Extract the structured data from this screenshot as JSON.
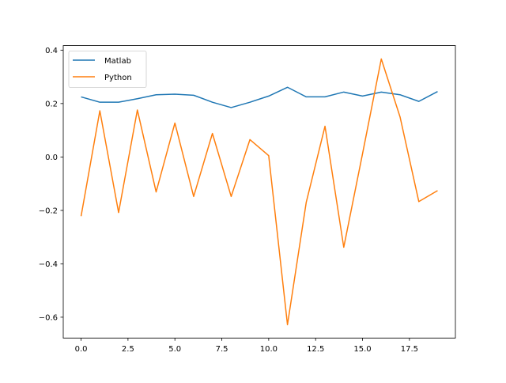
{
  "chart_data": {
    "type": "line",
    "title": "",
    "xlabel": "",
    "ylabel": "",
    "x": [
      0,
      1,
      2,
      3,
      4,
      5,
      6,
      7,
      8,
      9,
      10,
      11,
      12,
      13,
      14,
      15,
      16,
      17,
      18,
      19
    ],
    "series": [
      {
        "name": "Matlab",
        "color": "#1f77b4",
        "values": [
          0.225,
          0.205,
          0.205,
          0.218,
          0.233,
          0.235,
          0.231,
          0.205,
          0.185,
          0.205,
          0.228,
          0.261,
          0.225,
          0.225,
          0.243,
          0.228,
          0.243,
          0.233,
          0.208,
          0.245
        ]
      },
      {
        "name": "Python",
        "color": "#ff7f0e",
        "values": [
          -0.222,
          0.173,
          -0.208,
          0.176,
          -0.131,
          0.127,
          -0.148,
          0.088,
          -0.148,
          0.065,
          0.005,
          -0.628,
          -0.17,
          0.115,
          -0.338,
          0.012,
          0.367,
          0.15,
          -0.167,
          -0.126
        ]
      }
    ],
    "xlim": [
      -0.95,
      19.95
    ],
    "ylim": [
      -0.678,
      0.417
    ],
    "xticks": [
      0.0,
      2.5,
      5.0,
      7.5,
      10.0,
      12.5,
      15.0,
      17.5
    ],
    "xtick_labels": [
      "0.0",
      "2.5",
      "5.0",
      "7.5",
      "10.0",
      "12.5",
      "15.0",
      "17.5"
    ],
    "yticks": [
      0.4,
      0.2,
      0.0,
      -0.2,
      -0.4,
      -0.6
    ],
    "ytick_labels": [
      "0.4",
      "0.2",
      "0.0",
      "−0.2",
      "−0.4",
      "−0.6"
    ],
    "grid": false,
    "legend_position": "upper left"
  },
  "legend": {
    "items": [
      {
        "label": "Matlab",
        "color": "#1f77b4"
      },
      {
        "label": "Python",
        "color": "#ff7f0e"
      }
    ]
  }
}
